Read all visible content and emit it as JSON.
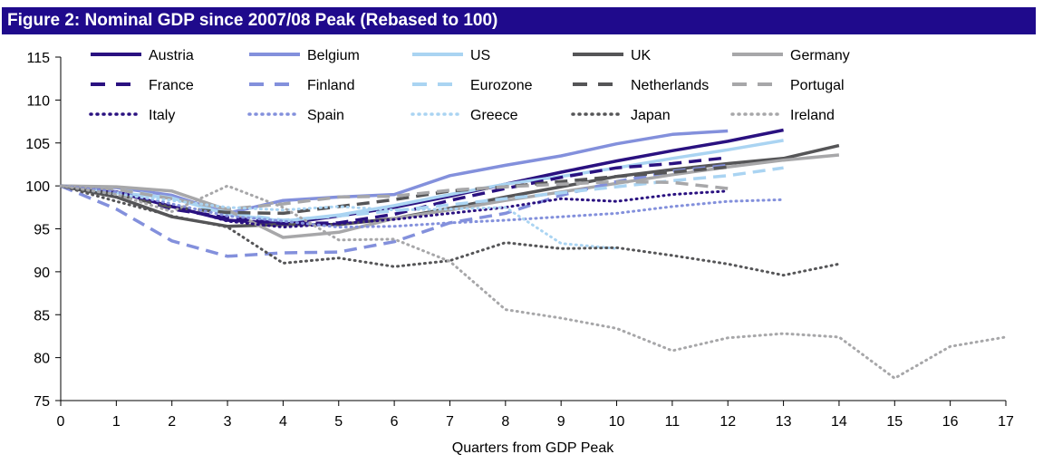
{
  "chart_data": {
    "type": "line",
    "title": "Figure 2: Nominal GDP since 2007/08 Peak (Rebased to 100)",
    "xlabel": "Quarters  from GDP Peak",
    "ylabel": "",
    "xlim": [
      0,
      17
    ],
    "ylim": [
      75,
      115
    ],
    "xticks": [
      0,
      1,
      2,
      3,
      4,
      5,
      6,
      7,
      8,
      9,
      10,
      11,
      12,
      13,
      14,
      15,
      16,
      17
    ],
    "yticks": [
      75,
      80,
      85,
      90,
      95,
      100,
      105,
      110,
      115
    ],
    "legend_position": "top",
    "series": [
      {
        "name": "Austria",
        "color": "#2a1180",
        "style": "solid",
        "x": [
          0,
          1,
          2,
          3,
          4,
          5,
          6,
          7,
          8,
          9,
          10,
          11,
          12,
          13
        ],
        "y": [
          100,
          99.3,
          97.6,
          96.0,
          95.6,
          96.5,
          97.5,
          98.8,
          100.2,
          101.6,
          102.9,
          104.1,
          105.2,
          106.5
        ]
      },
      {
        "name": "Belgium",
        "color": "#8390dc",
        "style": "solid",
        "x": [
          0,
          1,
          2,
          3,
          4,
          5,
          6,
          7,
          8,
          9,
          10,
          11,
          12
        ],
        "y": [
          100,
          99.8,
          98.9,
          96.8,
          98.3,
          98.7,
          99.0,
          101.2,
          102.4,
          103.5,
          104.9,
          106.0,
          106.4
        ]
      },
      {
        "name": "US",
        "color": "#aad4f2",
        "style": "solid",
        "x": [
          0,
          1,
          2,
          3,
          4,
          5,
          6,
          7,
          8,
          9,
          10,
          11,
          12,
          13
        ],
        "y": [
          100,
          99.2,
          98.6,
          96.7,
          95.9,
          96.6,
          97.7,
          99.0,
          100.2,
          101.1,
          102.1,
          103.2,
          104.2,
          105.3
        ]
      },
      {
        "name": "UK",
        "color": "#555557",
        "style": "solid",
        "x": [
          0,
          1,
          2,
          3,
          4,
          5,
          6,
          7,
          8,
          9,
          10,
          11,
          12,
          13,
          14
        ],
        "y": [
          100,
          98.7,
          96.4,
          95.3,
          95.5,
          95.5,
          96.2,
          97.4,
          98.7,
          99.9,
          101.1,
          101.9,
          102.6,
          103.2,
          104.7
        ]
      },
      {
        "name": "Germany",
        "color": "#a7a7a9",
        "style": "solid",
        "x": [
          0,
          1,
          2,
          3,
          4,
          5,
          6,
          7,
          8,
          9,
          10,
          11,
          12,
          13,
          14
        ],
        "y": [
          100,
          99.9,
          99.4,
          97.2,
          94.0,
          94.6,
          96.2,
          97.2,
          98.3,
          99.3,
          100.3,
          101.3,
          102.2,
          103.0,
          103.6
        ]
      },
      {
        "name": "France",
        "color": "#2a1180",
        "style": "dash",
        "x": [
          0,
          1,
          2,
          3,
          4,
          5,
          6,
          7,
          8,
          9,
          10,
          11,
          12
        ],
        "y": [
          100,
          99.4,
          97.3,
          96.3,
          95.6,
          95.7,
          96.7,
          98.3,
          99.7,
          101.0,
          102.1,
          102.6,
          103.3
        ]
      },
      {
        "name": "Finland",
        "color": "#8390dc",
        "style": "dash",
        "x": [
          0,
          1,
          2,
          3,
          4,
          5,
          6,
          7,
          8,
          9,
          10,
          11,
          12
        ],
        "y": [
          100,
          97.3,
          93.6,
          91.8,
          92.2,
          92.3,
          93.5,
          95.7,
          96.8,
          98.9,
          100.5,
          101.7,
          102.4
        ]
      },
      {
        "name": "Eurozone",
        "color": "#aad4f2",
        "style": "dash",
        "x": [
          0,
          1,
          2,
          3,
          4,
          5,
          6,
          7,
          8,
          9,
          10,
          11,
          12,
          13
        ],
        "y": [
          100,
          99.6,
          98.6,
          96.9,
          96.0,
          96.5,
          97.1,
          97.8,
          98.5,
          99.2,
          99.9,
          100.6,
          101.2,
          102.1
        ]
      },
      {
        "name": "Netherlands",
        "color": "#555557",
        "style": "dash",
        "x": [
          0,
          1,
          2,
          3,
          4,
          5,
          6,
          7,
          8,
          9,
          10,
          11,
          12
        ],
        "y": [
          100,
          99.0,
          97.5,
          96.9,
          96.8,
          97.6,
          98.4,
          99.4,
          99.9,
          100.5,
          101.1,
          101.6,
          102.2
        ]
      },
      {
        "name": "Portugal",
        "color": "#a7a7a9",
        "style": "dash",
        "x": [
          0,
          1,
          2,
          3,
          4,
          5,
          6,
          7,
          8,
          9,
          10,
          11,
          12
        ],
        "y": [
          100,
          99.6,
          98.5,
          97.3,
          97.9,
          98.7,
          98.8,
          99.5,
          99.9,
          100.2,
          100.5,
          100.4,
          99.7
        ]
      },
      {
        "name": "Italy",
        "color": "#2a1180",
        "style": "dot",
        "x": [
          0,
          1,
          2,
          3,
          4,
          5,
          6,
          7,
          8,
          9,
          10,
          11,
          12
        ],
        "y": [
          100,
          99.3,
          97.7,
          95.9,
          95.2,
          95.6,
          96.1,
          96.8,
          97.5,
          98.5,
          98.2,
          99.0,
          99.4
        ]
      },
      {
        "name": "Spain",
        "color": "#8390dc",
        "style": "dot",
        "x": [
          0,
          1,
          2,
          3,
          4,
          5,
          6,
          7,
          8,
          9,
          10,
          11,
          12,
          13
        ],
        "y": [
          100,
          99.3,
          97.9,
          96.5,
          95.9,
          95.2,
          95.3,
          95.7,
          96.0,
          96.4,
          96.8,
          97.6,
          98.2,
          98.4
        ]
      },
      {
        "name": "Greece",
        "color": "#aad4f2",
        "style": "dot",
        "x": [
          0,
          1,
          2,
          3,
          4,
          5,
          6,
          7,
          8,
          9,
          10
        ],
        "y": [
          100,
          99.0,
          98.3,
          97.5,
          97.2,
          97.6,
          97.2,
          97.3,
          97.5,
          93.3,
          92.7
        ]
      },
      {
        "name": "Japan",
        "color": "#555557",
        "style": "dot",
        "x": [
          0,
          1,
          2,
          3,
          4,
          5,
          6,
          7,
          8,
          9,
          10,
          11,
          12,
          13,
          14
        ],
        "y": [
          100,
          98.2,
          96.5,
          95.2,
          91.0,
          91.6,
          90.6,
          91.3,
          93.4,
          92.7,
          92.8,
          91.9,
          90.9,
          89.6,
          90.9
        ]
      },
      {
        "name": "Ireland",
        "color": "#a7a7a9",
        "style": "dot",
        "x": [
          0,
          1,
          2,
          3,
          4,
          5,
          6,
          7,
          8,
          9,
          10,
          11,
          12,
          13,
          14,
          15,
          16,
          17
        ],
        "y": [
          100,
          99.0,
          97.0,
          100.0,
          97.5,
          93.7,
          93.8,
          91.2,
          85.6,
          84.6,
          83.4,
          80.8,
          82.3,
          82.8,
          82.4,
          77.6,
          81.3,
          82.4
        ]
      }
    ]
  }
}
